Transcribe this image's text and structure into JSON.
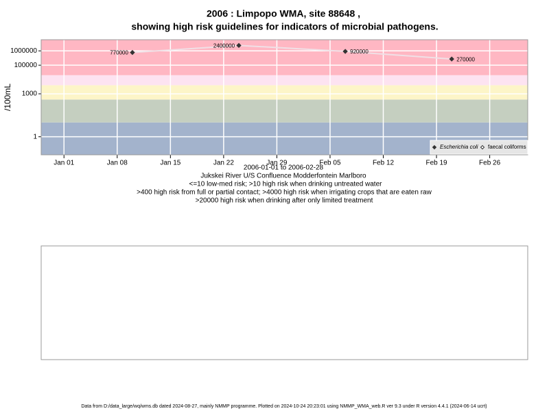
{
  "chart_data": {
    "type": "line",
    "title": "2006 : Limpopo WMA, site 88648 ,",
    "subtitle": "showing high risk guidelines for indicators of microbial pathogens.",
    "ylabel": "/100mL",
    "date_range": "2006-01-01 to 2006-02-28",
    "site_name": "Jukskei River U/S Confluence Modderfontein Marlboro",
    "guidelines": [
      "<=10 low-med risk; >10 high risk when drinking untreated water",
      ">400 high risk from full or partial contact; >4000 high risk when irrigating crops that are eaten raw",
      ">20000 high risk when drinking after only limited treatment"
    ],
    "footer": "Data from D:/data_large/wq/wms.db dated 2024-08-27, mainly NMMP programme. Plotted on 2024-10-24 20:23:01 using NMMP_WMA_web.R ver 9.3 under R version 4.4.1 (2024-06-14 ucrt)",
    "x": [
      "2006-01-10",
      "2006-01-24",
      "2006-02-07",
      "2006-02-21"
    ],
    "series": [
      {
        "name": "Escherichia coli",
        "color": "#333333",
        "line_color": "#f0e0e6",
        "marker": "filled",
        "values": [
          770000,
          2400000,
          920000,
          270000
        ]
      },
      {
        "name": "faecal coliforms",
        "color": "#333333",
        "marker": "open",
        "values": [
          null,
          null,
          null,
          null
        ]
      }
    ],
    "xlim": [
      "2005-12-29",
      "2006-03-03"
    ],
    "xticks": [
      {
        "value": "2006-01-01",
        "label": "Jan 01"
      },
      {
        "value": "2006-01-08",
        "label": "Jan 08"
      },
      {
        "value": "2006-01-15",
        "label": "Jan 15"
      },
      {
        "value": "2006-01-22",
        "label": "Jan 22"
      },
      {
        "value": "2006-01-29",
        "label": "Jan 29"
      },
      {
        "value": "2006-02-05",
        "label": "Feb 05"
      },
      {
        "value": "2006-02-12",
        "label": "Feb 12"
      },
      {
        "value": "2006-02-19",
        "label": "Feb 19"
      },
      {
        "value": "2006-02-26",
        "label": "Feb 26"
      }
    ],
    "ylim": [
      0.055,
      6000000
    ],
    "yticks": [
      1,
      1000,
      100000,
      1000000
    ],
    "ylog": true,
    "grid": true,
    "legend": "bottom-right",
    "band_thresholds": [
      10,
      400,
      4000,
      20000
    ],
    "band_colors": [
      "#a3b3cc",
      "#c5cfc0",
      "#fdf5c8",
      "#fde3f1",
      "#ffb7c3"
    ]
  }
}
